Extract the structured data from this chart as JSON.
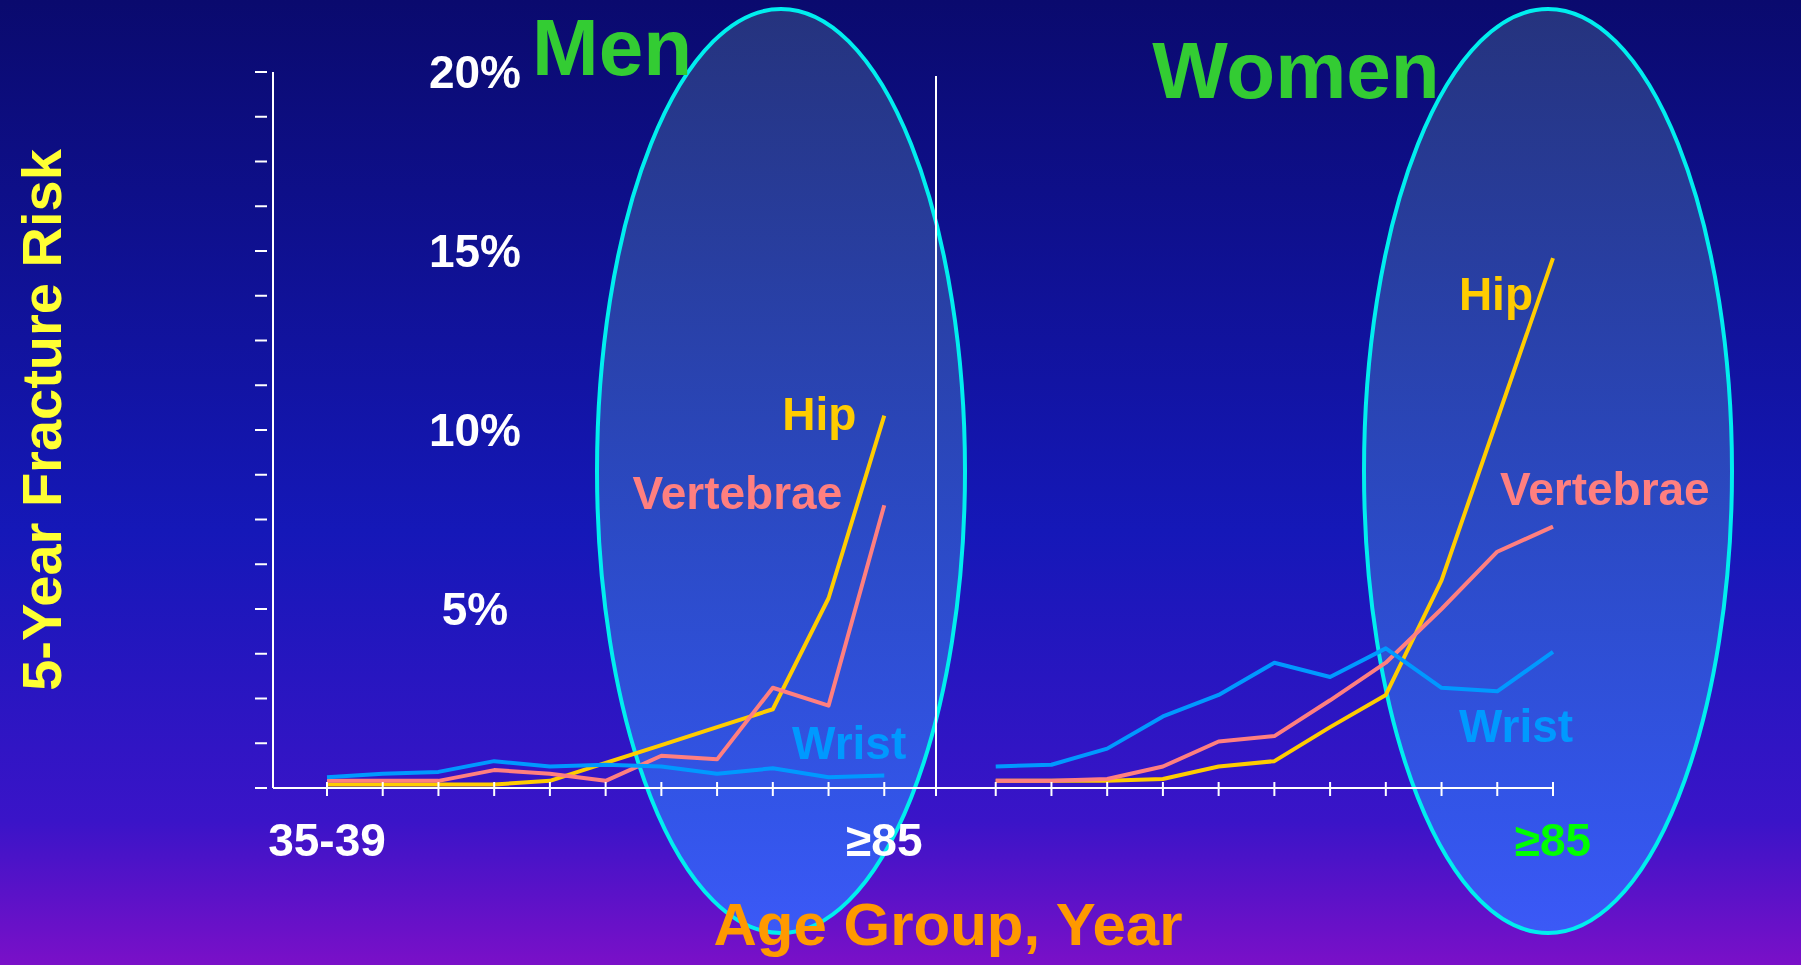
{
  "chart_data": {
    "type": "line",
    "ylabel": "5-Year Fracture Risk",
    "xlabel": "Age Group, Year",
    "annotations": [
      "Men",
      "Women"
    ],
    "categories": [
      "35-39",
      null,
      null,
      null,
      null,
      null,
      null,
      null,
      null,
      null,
      "≥85",
      null,
      null,
      null,
      null,
      null,
      null,
      null,
      null,
      null,
      null,
      null,
      "≥85"
    ],
    "ylim": [
      0,
      20
    ],
    "yticks": [
      {
        "value": 0,
        "label": null
      },
      {
        "value": 1.25,
        "label": null
      },
      {
        "value": 2.5,
        "label": null
      },
      {
        "value": 3.75,
        "label": null
      },
      {
        "value": 5,
        "label": "5%"
      },
      {
        "value": 6.25,
        "label": null
      },
      {
        "value": 7.5,
        "label": null
      },
      {
        "value": 8.75,
        "label": null
      },
      {
        "value": 10,
        "label": "10%"
      },
      {
        "value": 11.25,
        "label": null
      },
      {
        "value": 12.5,
        "label": null
      },
      {
        "value": 13.75,
        "label": null
      },
      {
        "value": 15,
        "label": "15%"
      },
      {
        "value": 16.25,
        "label": null
      },
      {
        "value": 17.5,
        "label": null
      },
      {
        "value": 18.75,
        "label": null
      },
      {
        "value": 20,
        "label": "20%"
      }
    ],
    "grid": false,
    "legend": false,
    "marker": "none",
    "line_style": "solid",
    "series": [
      {
        "name": "Hip",
        "color": "#ffcc00",
        "values": [
          0.1,
          0.1,
          0.1,
          0.1,
          0.2,
          0.7,
          1.2,
          1.7,
          2.2,
          5.3,
          10.4,
          null,
          null,
          null,
          null,
          null,
          null,
          null,
          null,
          null,
          null,
          null,
          null
        ]
      },
      {
        "name": "Vertebrae",
        "color": "#ff7f7f",
        "values": [
          0.2,
          0.2,
          0.2,
          0.5,
          0.4,
          0.2,
          0.9,
          0.8,
          2.8,
          2.3,
          7.9,
          null,
          null,
          null,
          null,
          null,
          null,
          null,
          null,
          null,
          null,
          null,
          null
        ]
      },
      {
        "name": "Wrist",
        "color": "#0099ff",
        "values": [
          0.3,
          0.4,
          0.45,
          0.75,
          0.6,
          0.65,
          0.6,
          0.4,
          0.55,
          0.3,
          0.35,
          null,
          null,
          null,
          null,
          null,
          null,
          null,
          null,
          null,
          null,
          null,
          null
        ]
      },
      {
        "name": "Hip",
        "color": "#ffcc00",
        "values": [
          null,
          null,
          null,
          null,
          null,
          null,
          null,
          null,
          null,
          null,
          null,
          null,
          0.2,
          0.2,
          0.2,
          0.25,
          0.6,
          0.75,
          1.7,
          2.6,
          5.8,
          10.3,
          14.8
        ]
      },
      {
        "name": "Vertebrae",
        "color": "#ff7f7f",
        "values": [
          null,
          null,
          null,
          null,
          null,
          null,
          null,
          null,
          null,
          null,
          null,
          null,
          0.2,
          0.2,
          0.25,
          0.6,
          1.3,
          1.45,
          2.45,
          3.5,
          5.0,
          6.6,
          7.3
        ]
      },
      {
        "name": "Wrist",
        "color": "#0099ff",
        "values": [
          null,
          null,
          null,
          null,
          null,
          null,
          null,
          null,
          null,
          null,
          null,
          null,
          0.6,
          0.65,
          1.1,
          2.0,
          2.6,
          3.5,
          3.1,
          3.9,
          2.8,
          2.7,
          3.8
        ]
      }
    ]
  }
}
